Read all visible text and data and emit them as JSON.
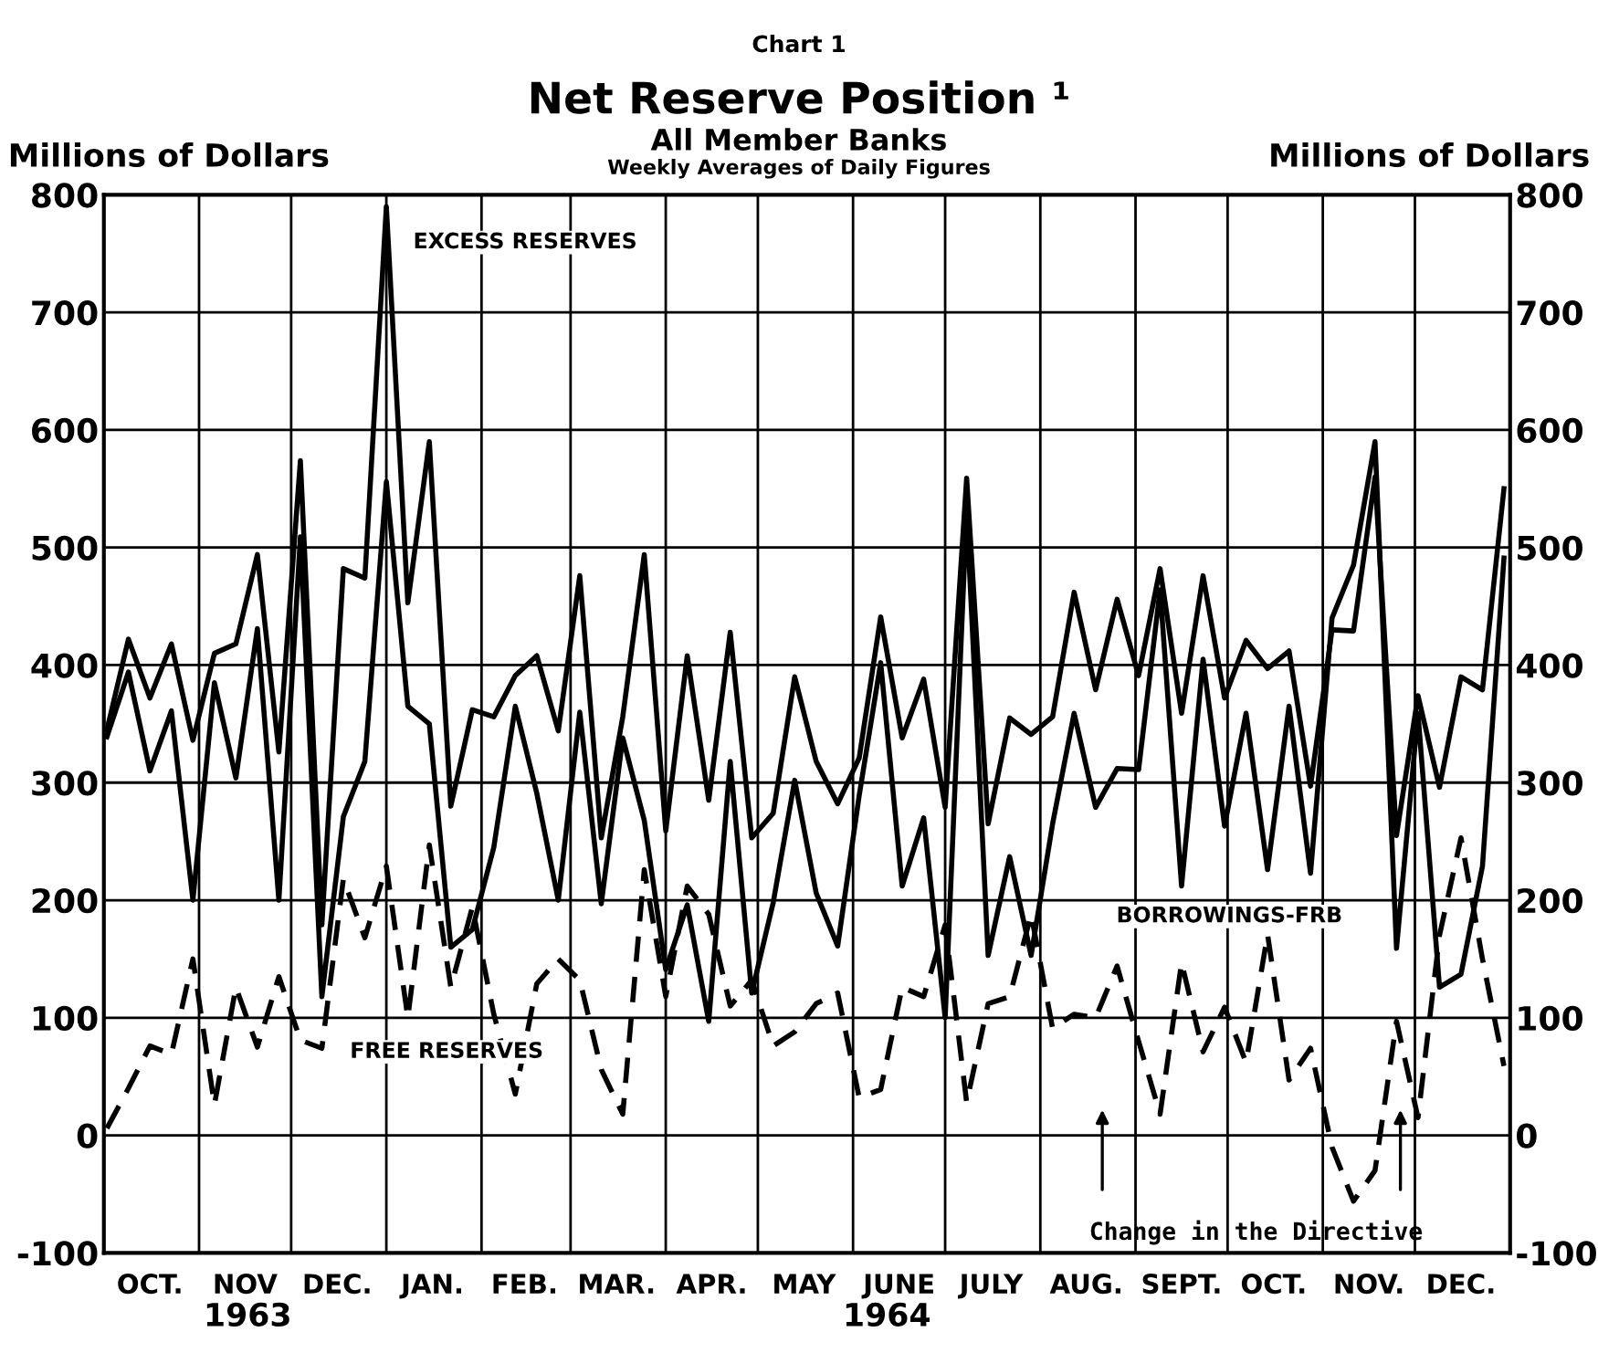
{
  "chart_data": {
    "type": "line",
    "title": "Net Reserve Position ¹",
    "subtitle": "All Member Banks",
    "ylabel": "Millions of Dollars",
    "y2label": "Millions of Dollars",
    "annotations": [
      "Chart 1",
      "Weekly Averages of Daily Figures",
      "1963",
      "1964",
      "Change in the Directive"
    ],
    "x": [
      "1963-10-02",
      "1963-10-09",
      "1963-10-16",
      "1963-10-23",
      "1963-10-30",
      "1963-11-06",
      "1963-11-13",
      "1963-11-20",
      "1963-11-27",
      "1963-12-04",
      "1963-12-11",
      "1963-12-18",
      "1963-12-25",
      "1964-01-01",
      "1964-01-08",
      "1964-01-15",
      "1964-01-22",
      "1964-01-29",
      "1964-02-05",
      "1964-02-12",
      "1964-02-19",
      "1964-02-26",
      "1964-03-04",
      "1964-03-11",
      "1964-03-18",
      "1964-03-25",
      "1964-04-01",
      "1964-04-08",
      "1964-04-15",
      "1964-04-22",
      "1964-04-29",
      "1964-05-06",
      "1964-05-13",
      "1964-05-20",
      "1964-05-27",
      "1964-06-03",
      "1964-06-10",
      "1964-06-17",
      "1964-06-24",
      "1964-07-01",
      "1964-07-08",
      "1964-07-15",
      "1964-07-22",
      "1964-07-29",
      "1964-08-05",
      "1964-08-12",
      "1964-08-19",
      "1964-08-26",
      "1964-09-02",
      "1964-09-09",
      "1964-09-16",
      "1964-09-23",
      "1964-09-30",
      "1964-10-07",
      "1964-10-14",
      "1964-10-21",
      "1964-10-28",
      "1964-11-04",
      "1964-11-11",
      "1964-11-18",
      "1964-11-25",
      "1964-12-02",
      "1964-12-09",
      "1964-12-16",
      "1964-12-23",
      "1964-12-30"
    ],
    "series": [
      {
        "name": "EXCESS RESERVES",
        "color": "#000000",
        "line_style": "solid",
        "values": [
          345,
          422,
          372,
          418,
          336,
          410,
          418,
          494,
          326,
          574,
          179,
          482,
          474,
          790,
          453,
          590,
          280,
          362,
          356,
          391,
          408,
          344,
          476,
          253,
          356,
          494,
          259,
          408,
          285,
          428,
          253,
          274,
          390,
          318,
          282,
          321,
          441,
          338,
          388,
          279,
          559,
          265,
          355,
          341,
          356,
          462,
          379,
          456,
          391,
          482,
          359,
          476,
          372,
          421,
          397,
          412,
          297,
          430,
          429,
          560,
          255,
          374,
          296,
          390,
          379,
          550
        ]
      },
      {
        "name": "BORROWINGS-FRB",
        "color": "#000000",
        "line_style": "solid",
        "values": [
          339,
          394,
          310,
          361,
          200,
          385,
          304,
          431,
          200,
          509,
          118,
          271,
          318,
          556,
          365,
          350,
          160,
          175,
          245,
          365,
          291,
          200,
          360,
          197,
          338,
          268,
          141,
          196,
          97,
          318,
          121,
          198,
          302,
          206,
          161,
          289,
          402,
          212,
          270,
          100,
          531,
          153,
          237,
          153,
          265,
          359,
          279,
          312,
          311,
          464,
          212,
          405,
          263,
          359,
          226,
          365,
          223,
          440,
          485,
          590,
          159,
          359,
          126,
          137,
          229,
          491
        ]
      },
      {
        "name": "FREE RESERVES",
        "color": "#000000",
        "line_style": "dashed",
        "values": [
          6,
          40,
          76,
          69,
          150,
          26,
          126,
          75,
          135,
          81,
          74,
          218,
          168,
          229,
          100,
          247,
          126,
          194,
          103,
          35,
          129,
          150,
          132,
          56,
          18,
          226,
          118,
          212,
          188,
          110,
          132,
          76,
          88,
          112,
          121,
          32,
          39,
          126,
          118,
          179,
          28,
          112,
          118,
          188,
          91,
          103,
          100,
          144,
          80,
          18,
          147,
          71,
          109,
          62,
          171,
          47,
          74,
          -10,
          -56,
          -30,
          97,
          15,
          170,
          253,
          150,
          59
        ]
      }
    ],
    "xlim": [
      "1963-10-01",
      "1965-01-01"
    ],
    "xticks": [
      {
        "value": "1963-10-01",
        "label": null
      },
      {
        "value": "1963-10-16",
        "label": "OCT."
      },
      {
        "value": "1963-11-01",
        "label": null
      },
      {
        "value": "1963-11-16",
        "label": "NOV"
      },
      {
        "value": "1963-12-01",
        "label": null
      },
      {
        "value": "1963-12-16",
        "label": "DEC."
      },
      {
        "value": "1964-01-01",
        "label": null
      },
      {
        "value": "1964-01-16",
        "label": "JAN."
      },
      {
        "value": "1964-02-01",
        "label": null
      },
      {
        "value": "1964-02-15",
        "label": "FEB."
      },
      {
        "value": "1964-03-01",
        "label": null
      },
      {
        "value": "1964-03-16",
        "label": "MAR."
      },
      {
        "value": "1964-04-01",
        "label": null
      },
      {
        "value": "1964-04-16",
        "label": "APR."
      },
      {
        "value": "1964-05-01",
        "label": null
      },
      {
        "value": "1964-05-16",
        "label": "MAY"
      },
      {
        "value": "1964-06-01",
        "label": null
      },
      {
        "value": "1964-06-16",
        "label": "JUNE"
      },
      {
        "value": "1964-07-01",
        "label": null
      },
      {
        "value": "1964-07-16",
        "label": "JULY"
      },
      {
        "value": "1964-08-01",
        "label": null
      },
      {
        "value": "1964-08-16",
        "label": "AUG."
      },
      {
        "value": "1964-09-01",
        "label": null
      },
      {
        "value": "1964-09-16",
        "label": "SEPT."
      },
      {
        "value": "1964-10-01",
        "label": null
      },
      {
        "value": "1964-10-16",
        "label": "OCT."
      },
      {
        "value": "1964-11-01",
        "label": null
      },
      {
        "value": "1964-11-16",
        "label": "NOV."
      },
      {
        "value": "1964-12-01",
        "label": null
      },
      {
        "value": "1964-12-16",
        "label": "DEC."
      },
      {
        "value": "1965-01-01",
        "label": null
      }
    ],
    "ylim": [
      -100,
      800
    ],
    "yticks": [
      -100,
      0,
      100,
      200,
      300,
      400,
      500,
      600,
      700,
      800
    ],
    "y2lim": [
      -100,
      800
    ],
    "y2ticks": [
      -100,
      0,
      100,
      200,
      300,
      400,
      500,
      600,
      700,
      800
    ],
    "grid": true,
    "legend": false,
    "marker": "none"
  }
}
